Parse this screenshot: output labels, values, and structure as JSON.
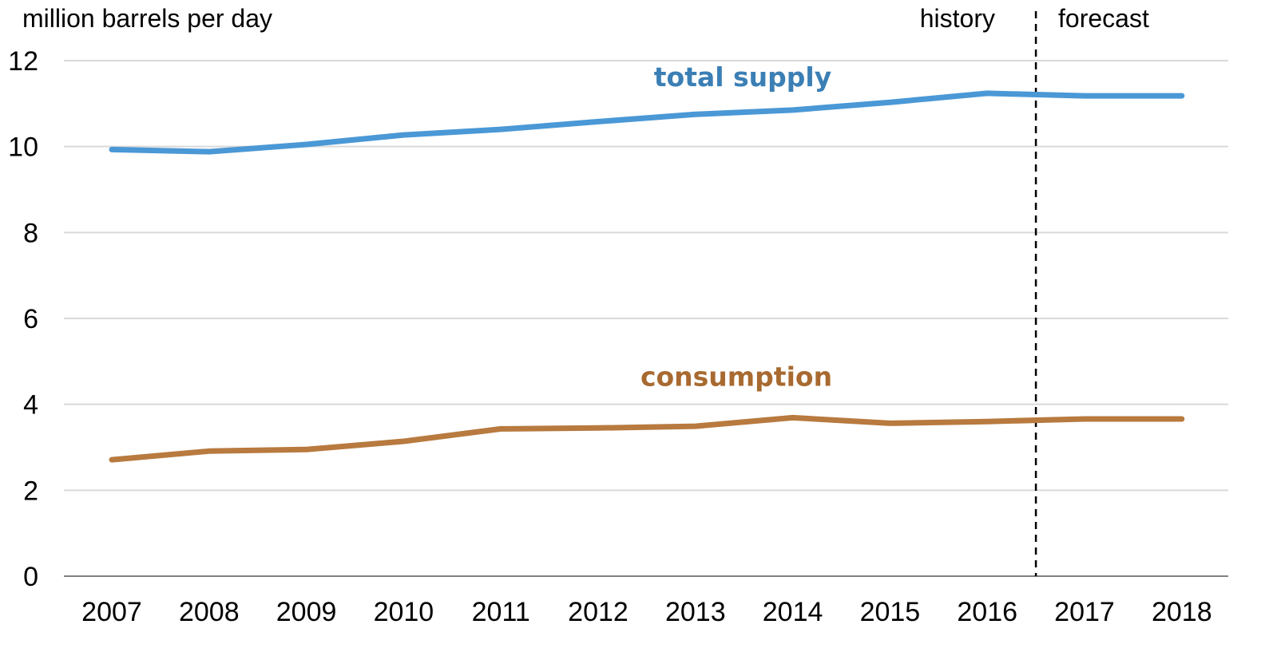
{
  "chart_data": {
    "type": "line",
    "ylabel": "million barrels per day",
    "x": [
      "2007",
      "2008",
      "2009",
      "2010",
      "2011",
      "2012",
      "2013",
      "2014",
      "2015",
      "2016",
      "2017",
      "2018"
    ],
    "ylim": [
      0,
      12
    ],
    "yticks": [
      "0",
      "2",
      "4",
      "6",
      "8",
      "10",
      "12"
    ],
    "grid": true,
    "series": [
      {
        "name": "total supply",
        "color": "#4a98d6",
        "label_color": "#3b7fb5",
        "values": [
          9.93,
          9.88,
          10.05,
          10.27,
          10.4,
          10.58,
          10.75,
          10.85,
          11.03,
          11.24,
          11.18,
          11.18
        ]
      },
      {
        "name": "consumption",
        "color": "#b87a3f",
        "label_color": "#a86a30",
        "values": [
          2.71,
          2.91,
          2.95,
          3.14,
          3.43,
          3.45,
          3.49,
          3.69,
          3.56,
          3.6,
          3.66,
          3.66
        ]
      }
    ],
    "annotations": {
      "history": "history",
      "forecast": "forecast",
      "divider_between": [
        "2016",
        "2017"
      ]
    }
  }
}
